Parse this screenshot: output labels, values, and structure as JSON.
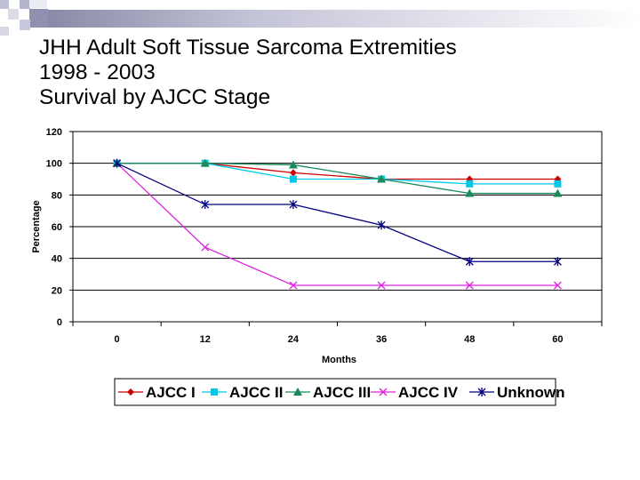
{
  "title_lines": [
    "JHH Adult Soft Tissue Sarcoma Extremities",
    "1998 - 2003",
    "Survival by AJCC Stage"
  ],
  "chart_data": {
    "type": "line",
    "title": "",
    "xlabel": "Months",
    "ylabel": "Percentage",
    "categories": [
      "0",
      "12",
      "24",
      "36",
      "48",
      "60"
    ],
    "x": [
      0,
      12,
      24,
      36,
      48,
      60
    ],
    "ylim": [
      0,
      120
    ],
    "yticks": [
      0,
      20,
      40,
      60,
      80,
      100,
      120
    ],
    "grid": "horizontal",
    "legend": "bottom",
    "series": [
      {
        "name": "AJCC I",
        "color": "#cc0000",
        "marker": "diamond",
        "values": [
          100,
          100,
          94,
          90,
          90,
          90
        ]
      },
      {
        "name": "AJCC II",
        "color": "#00c8e8",
        "marker": "square",
        "values": [
          100,
          100,
          90,
          90,
          87,
          87
        ]
      },
      {
        "name": "AJCC III",
        "color": "#1a8a5a",
        "marker": "triangle",
        "values": [
          100,
          100,
          99,
          90,
          81,
          81
        ]
      },
      {
        "name": "AJCC IV",
        "color": "#dd22dd",
        "marker": "x",
        "values": [
          100,
          47,
          23,
          23,
          23,
          23
        ]
      },
      {
        "name": "Unknown",
        "color": "#000080",
        "marker": "star",
        "values": [
          100,
          74,
          74,
          61,
          38,
          38
        ]
      }
    ]
  }
}
